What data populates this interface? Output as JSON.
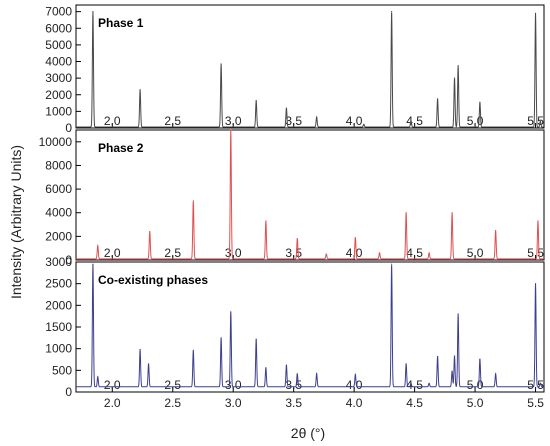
{
  "chart_data": {
    "type": "line",
    "xlabel": "2θ (°)",
    "ylabel": "Intensity (Arbitrary Units)",
    "xlim": [
      1.7,
      5.57
    ],
    "xticks": [
      2.0,
      2.5,
      3.0,
      3.5,
      4.0,
      4.5,
      5.0,
      5.5
    ],
    "panels": [
      {
        "title": "Phase 1",
        "color": "#4a4a4a",
        "ylim": [
          0,
          7400
        ],
        "yticks": [
          0,
          1000,
          2000,
          3000,
          4000,
          5000,
          6000,
          7000
        ],
        "baseline": 60,
        "peaks": [
          {
            "x": 1.84,
            "y": 7000
          },
          {
            "x": 2.23,
            "y": 2300
          },
          {
            "x": 2.9,
            "y": 3850
          },
          {
            "x": 3.19,
            "y": 1650
          },
          {
            "x": 3.44,
            "y": 1200
          },
          {
            "x": 3.69,
            "y": 650
          },
          {
            "x": 4.08,
            "y": 220
          },
          {
            "x": 4.31,
            "y": 7000
          },
          {
            "x": 4.47,
            "y": 450
          },
          {
            "x": 4.69,
            "y": 1750
          },
          {
            "x": 4.83,
            "y": 3000
          },
          {
            "x": 4.86,
            "y": 3750
          },
          {
            "x": 5.04,
            "y": 1550
          },
          {
            "x": 5.5,
            "y": 6900
          },
          {
            "x": 5.54,
            "y": 400
          }
        ]
      },
      {
        "title": "Phase 2",
        "color": "#e05050",
        "ylim": [
          0,
          11000
        ],
        "yticks": [
          0,
          2000,
          4000,
          6000,
          8000,
          10000
        ],
        "baseline": 100,
        "peaks": [
          {
            "x": 1.88,
            "y": 1200
          },
          {
            "x": 2.31,
            "y": 2400
          },
          {
            "x": 2.67,
            "y": 5000
          },
          {
            "x": 2.98,
            "y": 11000
          },
          {
            "x": 3.27,
            "y": 3300
          },
          {
            "x": 3.53,
            "y": 1800
          },
          {
            "x": 3.77,
            "y": 500
          },
          {
            "x": 4.01,
            "y": 1900
          },
          {
            "x": 4.21,
            "y": 600
          },
          {
            "x": 4.43,
            "y": 4000
          },
          {
            "x": 4.62,
            "y": 600
          },
          {
            "x": 4.81,
            "y": 4000
          },
          {
            "x": 5.17,
            "y": 2500
          },
          {
            "x": 5.52,
            "y": 3300
          }
        ]
      },
      {
        "title": "Co-existing phases",
        "color": "#3f3f8f",
        "ylim": [
          0,
          3000
        ],
        "yticks": [
          0,
          500,
          1000,
          1500,
          2000,
          2500,
          3000
        ],
        "baseline": 120,
        "peaks": [
          {
            "x": 1.84,
            "y": 2950
          },
          {
            "x": 1.88,
            "y": 350
          },
          {
            "x": 2.23,
            "y": 980
          },
          {
            "x": 2.3,
            "y": 650
          },
          {
            "x": 2.67,
            "y": 960
          },
          {
            "x": 2.9,
            "y": 1250
          },
          {
            "x": 2.98,
            "y": 1850
          },
          {
            "x": 3.19,
            "y": 1220
          },
          {
            "x": 3.27,
            "y": 560
          },
          {
            "x": 3.44,
            "y": 620
          },
          {
            "x": 3.53,
            "y": 420
          },
          {
            "x": 3.69,
            "y": 420
          },
          {
            "x": 4.01,
            "y": 400
          },
          {
            "x": 4.31,
            "y": 2950
          },
          {
            "x": 4.43,
            "y": 650
          },
          {
            "x": 4.47,
            "y": 200
          },
          {
            "x": 4.62,
            "y": 200
          },
          {
            "x": 4.69,
            "y": 820
          },
          {
            "x": 4.81,
            "y": 480
          },
          {
            "x": 4.83,
            "y": 830
          },
          {
            "x": 4.86,
            "y": 1800
          },
          {
            "x": 5.04,
            "y": 760
          },
          {
            "x": 5.17,
            "y": 420
          },
          {
            "x": 5.5,
            "y": 2500
          },
          {
            "x": 5.54,
            "y": 200
          }
        ]
      }
    ]
  }
}
